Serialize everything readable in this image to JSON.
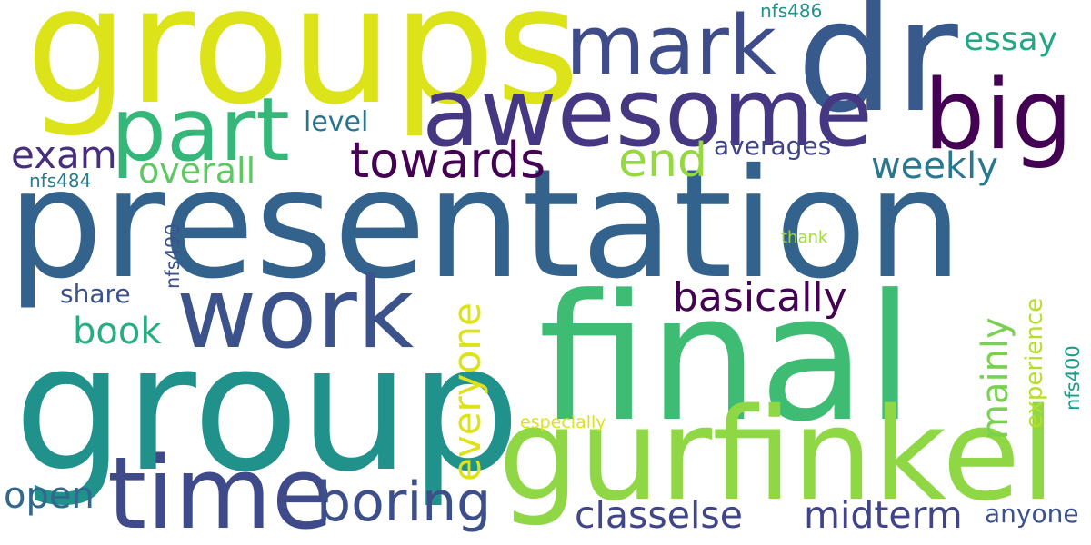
{
  "words": [
    {
      "text": "presentation",
      "color": "#33638d",
      "vertical": false
    },
    {
      "text": "groups",
      "color": "#dce319",
      "vertical": false
    },
    {
      "text": "group",
      "color": "#21918c",
      "vertical": false
    },
    {
      "text": "final",
      "color": "#3fbc73",
      "vertical": false
    },
    {
      "text": "dr",
      "color": "#38598c",
      "vertical": false
    },
    {
      "text": "gurfinkel",
      "color": "#8fd744",
      "vertical": false
    },
    {
      "text": "awesome",
      "color": "#453781",
      "vertical": false
    },
    {
      "text": "work",
      "color": "#3b528b",
      "vertical": false
    },
    {
      "text": "time",
      "color": "#3e4a89",
      "vertical": false
    },
    {
      "text": "big",
      "color": "#440154",
      "vertical": false
    },
    {
      "text": "part",
      "color": "#35b779",
      "vertical": false
    },
    {
      "text": "mark",
      "color": "#3e4c8a",
      "vertical": false
    },
    {
      "text": "boring",
      "color": "#3c4f8a",
      "vertical": false
    },
    {
      "text": "towards",
      "color": "#440154",
      "vertical": false
    },
    {
      "text": "basically",
      "color": "#440154",
      "vertical": false
    },
    {
      "text": "classelse",
      "color": "#404688",
      "vertical": false
    },
    {
      "text": "midterm",
      "color": "#414487",
      "vertical": false
    },
    {
      "text": "end",
      "color": "#95d840",
      "vertical": false
    },
    {
      "text": "exam",
      "color": "#472f7d",
      "vertical": false
    },
    {
      "text": "essay",
      "color": "#22a884",
      "vertical": false
    },
    {
      "text": "weekly",
      "color": "#2a788e",
      "vertical": false
    },
    {
      "text": "overall",
      "color": "#5ec962",
      "vertical": false
    },
    {
      "text": "book",
      "color": "#27ad81",
      "vertical": false
    },
    {
      "text": "open",
      "color": "#31688e",
      "vertical": false
    },
    {
      "text": "averages",
      "color": "#414487",
      "vertical": false
    },
    {
      "text": "level",
      "color": "#2c738e",
      "vertical": false
    },
    {
      "text": "share",
      "color": "#3b528b",
      "vertical": false
    },
    {
      "text": "anyone",
      "color": "#3b528b",
      "vertical": false
    },
    {
      "text": "nfs486",
      "color": "#20938c",
      "vertical": false
    },
    {
      "text": "nfs484",
      "color": "#287d8e",
      "vertical": false
    },
    {
      "text": "thank",
      "color": "#a0da39",
      "vertical": false
    },
    {
      "text": "especially",
      "color": "#dde318",
      "vertical": false
    },
    {
      "text": "everyone",
      "color": "#dde318",
      "vertical": true
    },
    {
      "text": "mainly",
      "color": "#7ad151",
      "vertical": true
    },
    {
      "text": "experience",
      "color": "#b5de2b",
      "vertical": true
    },
    {
      "text": "nfs490",
      "color": "#3b528b",
      "vertical": true
    },
    {
      "text": "nfs400",
      "color": "#1e9b8a",
      "vertical": true
    }
  ]
}
